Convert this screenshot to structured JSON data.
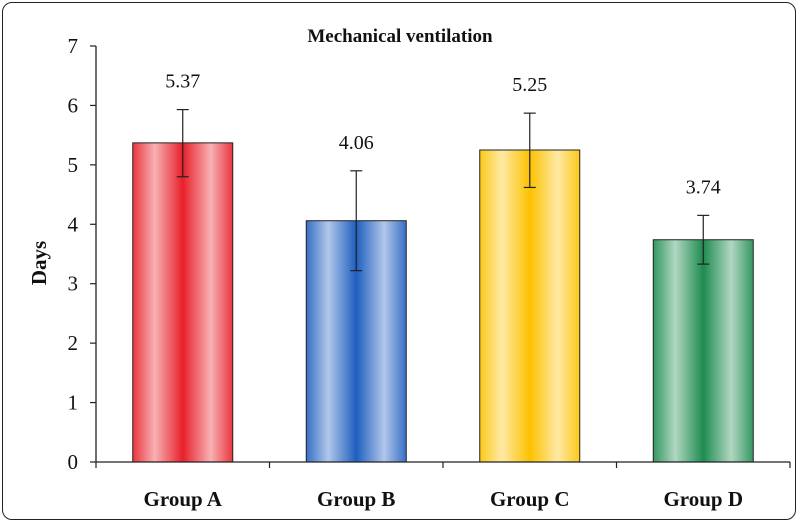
{
  "chart_data": {
    "type": "bar",
    "title": "Mechanical ventilation",
    "xlabel": "",
    "ylabel": "Days",
    "ylim": [
      0,
      7
    ],
    "yticks": [
      "0",
      "1",
      "2",
      "3",
      "4",
      "5",
      "6",
      "7"
    ],
    "grid": false,
    "categories": [
      "Group A",
      "Group B",
      "Group C",
      "Group D"
    ],
    "values": [
      5.37,
      4.06,
      5.25,
      3.74
    ],
    "value_labels": [
      "5.37",
      "4.06",
      "5.25",
      "3.74"
    ],
    "error_bars": [
      {
        "low": 4.8,
        "high": 5.93
      },
      {
        "low": 3.22,
        "high": 4.9
      },
      {
        "low": 4.62,
        "high": 5.87
      },
      {
        "low": 3.33,
        "high": 4.15
      }
    ],
    "colors": [
      "#e8202a",
      "#1f5fc0",
      "#fcc200",
      "#1e8c50"
    ]
  }
}
